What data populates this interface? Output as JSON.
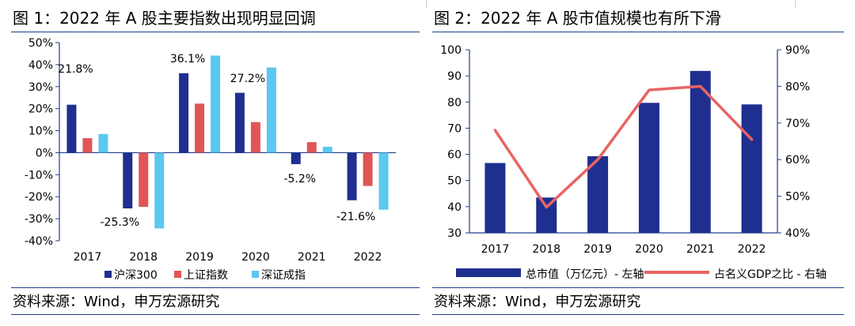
{
  "figure1": {
    "title": "图 1：2022 年 A 股主要指数出现明显回调",
    "source": "资料来源：Wind，申万宏源研究",
    "chart_data": {
      "type": "bar",
      "categories": [
        "2017",
        "2018",
        "2019",
        "2020",
        "2021",
        "2022"
      ],
      "series": [
        {
          "name": "沪深300",
          "color": "#1f2f8f",
          "values": [
            21.8,
            -25.3,
            36.1,
            27.2,
            -5.2,
            -21.6
          ]
        },
        {
          "name": "上证指数",
          "color": "#e05656",
          "values": [
            6.6,
            -24.6,
            22.3,
            13.9,
            4.8,
            -15.1
          ]
        },
        {
          "name": "深证成指",
          "color": "#5bc8f0",
          "values": [
            8.5,
            -34.4,
            44.1,
            38.7,
            2.7,
            -25.9
          ]
        }
      ],
      "data_labels": [
        "21.8%",
        "-25.3%",
        "36.1%",
        "27.2%",
        "-5.2%",
        "-21.6%"
      ],
      "yticks": [
        "50%",
        "40%",
        "30%",
        "20%",
        "10%",
        "0%",
        "-10%",
        "-20%",
        "-30%",
        "-40%"
      ],
      "ylim": [
        -40,
        50
      ],
      "ytick_values": [
        50,
        40,
        30,
        20,
        10,
        0,
        -10,
        -20,
        -30,
        -40
      ],
      "legend_position": "bottom",
      "grid": false
    }
  },
  "figure2": {
    "title": "图 2：2022 年 A 股市值规模也有所下滑",
    "source": "资料来源：Wind，申万宏源研究",
    "chart_data": {
      "type": "bar",
      "categories": [
        "2017",
        "2018",
        "2019",
        "2020",
        "2021",
        "2022"
      ],
      "series": [
        {
          "name": "总市值（万亿元）- 左轴",
          "kind": "bar",
          "color": "#1f2f8f",
          "values": [
            56.7,
            43.5,
            59.3,
            79.7,
            91.9,
            79.1
          ]
        },
        {
          "name": "占名义GDP之比 - 右轴",
          "kind": "line",
          "color": "#e86363",
          "values": [
            68.0,
            47.0,
            60.0,
            79.0,
            80.0,
            65.5
          ]
        }
      ],
      "yticks_left": [
        "100",
        "90",
        "80",
        "70",
        "60",
        "50",
        "40",
        "30"
      ],
      "ytick_values_left": [
        100,
        90,
        80,
        70,
        60,
        50,
        40,
        30
      ],
      "ylim_left": [
        30,
        100
      ],
      "yticks_right": [
        "90%",
        "80%",
        "70%",
        "60%",
        "50%",
        "40%"
      ],
      "ytick_values_right": [
        90,
        80,
        70,
        60,
        50,
        40
      ],
      "ylim_right": [
        40,
        90
      ],
      "legend_position": "bottom",
      "grid": false
    }
  }
}
